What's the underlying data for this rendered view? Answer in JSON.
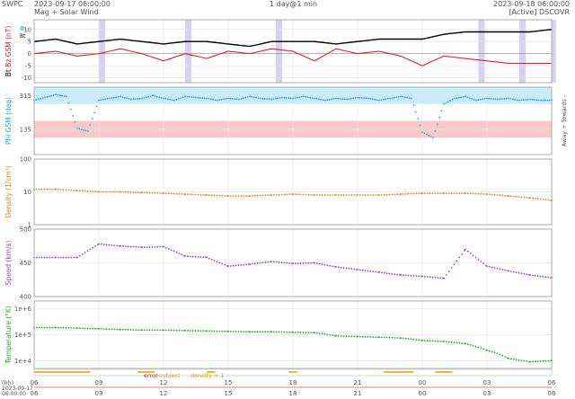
{
  "header": {
    "brand": "SWPC",
    "start_time": "2023-09-17 06:00:00",
    "subtitle": "Mag + Solar Wind",
    "cadence": "1 day@1 min",
    "end_time": "2023-09-18 06:00:00",
    "source": "[Active] DSCOVR"
  },
  "colors": {
    "bt": "#000000",
    "bz": "#e02020",
    "phi": "#20a8e0",
    "phi_towards_band": "#c8ecfa",
    "phi_away_band": "#fac8c8",
    "density": "#e88020",
    "speed": "#a040d0",
    "temperature": "#20b020",
    "highlight": "#d8d0f0",
    "status_error": "#c02020",
    "status_subject": "#e0a000",
    "status_density": "#e0a000",
    "grid": "#e4e4e4"
  },
  "chart_data": [
    {
      "type": "line",
      "id": "mag",
      "ylabel_parts": [
        "Bt",
        "Bz GSM (nT)"
      ],
      "side_glyphs": [
        "Φ",
        "Bt"
      ],
      "yticks": [
        10,
        5,
        0,
        -5,
        -10
      ],
      "ylim": [
        -12,
        14
      ],
      "series": [
        {
          "key": "bt",
          "x": [
            6,
            7,
            8,
            9,
            10,
            11,
            12,
            13,
            14,
            15,
            16,
            17,
            18,
            19,
            20,
            21,
            22,
            23,
            24,
            25,
            26,
            27,
            28,
            29,
            30
          ],
          "values": [
            5,
            6,
            4,
            5,
            6,
            5,
            4,
            5,
            5,
            4,
            3,
            5,
            5,
            5,
            4,
            5,
            6,
            6,
            6,
            8,
            9,
            9,
            9,
            9,
            10
          ]
        },
        {
          "key": "bz",
          "x": [
            6,
            7,
            8,
            9,
            10,
            11,
            12,
            13,
            14,
            15,
            16,
            17,
            18,
            19,
            20,
            21,
            22,
            23,
            24,
            25,
            26,
            27,
            28,
            29,
            30
          ],
          "values": [
            0,
            1,
            -1,
            0,
            2,
            0,
            -3,
            0,
            -2,
            1,
            0,
            2,
            1,
            -3,
            2,
            0,
            1,
            -1,
            -5,
            -1,
            -2,
            -3,
            -4,
            -4,
            -4
          ]
        }
      ],
      "highlight_spans": [
        [
          9.0,
          9.3
        ],
        [
          13.0,
          13.3
        ],
        [
          17.2,
          17.5
        ],
        [
          26.6,
          26.9
        ],
        [
          28.5,
          28.8
        ],
        [
          30.0,
          30.2
        ]
      ]
    },
    {
      "type": "scatter",
      "id": "phi",
      "ylabel": "Phi GSM (deg)",
      "side_label": "Away + Towards -",
      "yticks": [
        315,
        135
      ],
      "ylim": [
        0,
        360
      ],
      "towards_band": [
        270,
        360
      ],
      "away_band": [
        90,
        180
      ],
      "x": [
        6,
        6.5,
        7,
        7.5,
        8,
        8.5,
        9,
        9.5,
        10,
        10.5,
        11,
        11.5,
        12,
        12.5,
        13,
        13.5,
        14,
        14.5,
        15,
        15.5,
        16,
        16.5,
        17,
        17.5,
        18,
        18.5,
        19,
        19.5,
        20,
        20.5,
        21,
        21.5,
        22,
        22.5,
        23,
        23.5,
        24,
        24.5,
        25,
        25.5,
        26,
        26.5,
        27,
        27.5,
        28,
        28.5,
        29,
        29.5,
        30
      ],
      "values": [
        290,
        305,
        320,
        310,
        140,
        125,
        290,
        300,
        310,
        295,
        300,
        315,
        300,
        290,
        310,
        305,
        300,
        290,
        300,
        295,
        310,
        300,
        295,
        305,
        300,
        310,
        300,
        290,
        300,
        295,
        305,
        300,
        290,
        300,
        310,
        300,
        120,
        90,
        270,
        300,
        310,
        290,
        300,
        295,
        300,
        290,
        295,
        290,
        290
      ]
    },
    {
      "type": "scatter",
      "id": "density",
      "ylabel": "Density (1/cm³)",
      "yticks": [
        100,
        10,
        1
      ],
      "ylim": [
        1,
        100
      ],
      "log": true,
      "x": [
        6,
        7,
        8,
        9,
        10,
        11,
        12,
        13,
        14,
        15,
        16,
        17,
        18,
        19,
        20,
        21,
        22,
        23,
        24,
        25,
        26,
        27,
        28,
        29,
        30
      ],
      "values": [
        12,
        12,
        11,
        10,
        10,
        9.5,
        9,
        8.5,
        8,
        7.5,
        7.5,
        8,
        8.5,
        8,
        8,
        8,
        8,
        8.5,
        9,
        9,
        9,
        8.5,
        7.5,
        6.5,
        5.5
      ]
    },
    {
      "type": "scatter",
      "id": "speed",
      "ylabel": "Speed (km/s)",
      "yticks": [
        500,
        450,
        400
      ],
      "ylim": [
        400,
        500
      ],
      "x": [
        6,
        7,
        8,
        9,
        10,
        11,
        12,
        13,
        14,
        15,
        16,
        17,
        18,
        19,
        20,
        21,
        22,
        23,
        24,
        25,
        26,
        27,
        28,
        29,
        30
      ],
      "values": [
        458,
        458,
        458,
        478,
        475,
        473,
        474,
        460,
        458,
        445,
        448,
        452,
        449,
        450,
        444,
        440,
        436,
        432,
        430,
        427,
        470,
        445,
        438,
        432,
        428
      ]
    },
    {
      "type": "scatter",
      "id": "temperature",
      "ylabel": "Temperature (°K)",
      "yticks": [
        "1e+6",
        "1e+5",
        "1e+4"
      ],
      "ylim": [
        5000,
        2000000
      ],
      "log": true,
      "x": [
        6,
        7,
        8,
        9,
        10,
        11,
        12,
        13,
        14,
        15,
        16,
        17,
        18,
        19,
        20,
        21,
        22,
        23,
        24,
        25,
        26,
        27,
        28,
        29,
        30
      ],
      "values": [
        190000,
        190000,
        180000,
        170000,
        160000,
        150000,
        150000,
        145000,
        140000,
        135000,
        130000,
        130000,
        125000,
        120000,
        90000,
        85000,
        80000,
        75000,
        60000,
        55000,
        45000,
        25000,
        12000,
        9000,
        10000
      ]
    }
  ],
  "status_bar": {
    "labels": [
      {
        "key": "status_error",
        "text": "error"
      },
      {
        "key": "status_subject",
        "text": "subject"
      },
      {
        "key": "status_density",
        "text": "density < 1"
      }
    ]
  },
  "xaxis": {
    "unit": "(hh)",
    "ticks_top": [
      "06",
      "09",
      "12",
      "15",
      "18",
      "21",
      "00",
      "03",
      "06"
    ],
    "ticks_bottom": [
      "06",
      "09",
      "12",
      "15",
      "18",
      "21",
      "00",
      "03",
      "06"
    ],
    "corner_date_lines": [
      "2023-09-17",
      "06:00:00"
    ]
  }
}
